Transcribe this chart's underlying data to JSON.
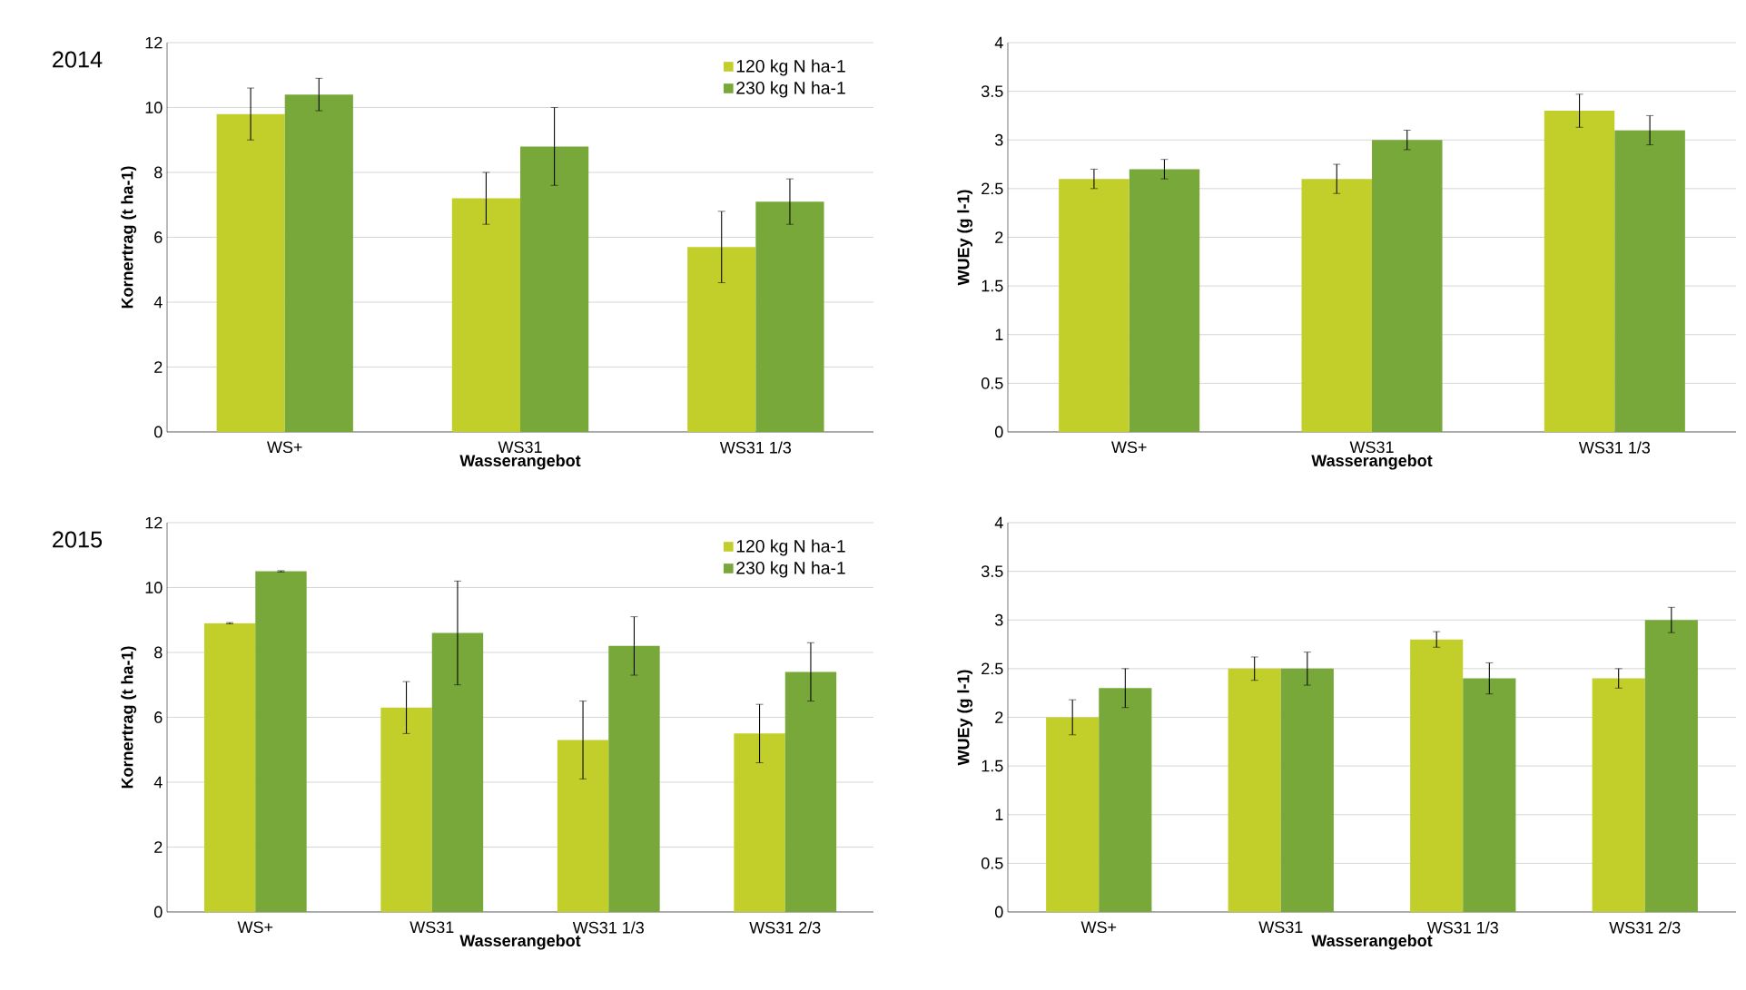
{
  "chart_data": [
    {
      "type": "bar",
      "title": "2014",
      "xlabel": "Wasserangebot",
      "ylabel": "Kornertrag (t ha-1)",
      "categories": [
        "WS+",
        "WS31",
        "WS31 1/3"
      ],
      "ylim": [
        0,
        12
      ],
      "yticks": [
        0,
        2,
        4,
        6,
        8,
        10,
        12
      ],
      "grid": "y",
      "legend": "top right",
      "series": [
        {
          "name": "120 kg N ha-1",
          "color": "#c2cf2b",
          "values": [
            9.8,
            7.2,
            5.7
          ],
          "errors": [
            0.8,
            0.8,
            1.1
          ]
        },
        {
          "name": "230 kg N ha-1",
          "color": "#78a83a",
          "values": [
            10.4,
            8.8,
            7.1
          ],
          "errors": [
            0.5,
            1.2,
            0.7
          ]
        }
      ]
    },
    {
      "type": "bar",
      "xlabel": "Wasserangebot",
      "ylabel": "WUEy (g l-1)",
      "categories": [
        "WS+",
        "WS31",
        "WS31 1/3"
      ],
      "ylim": [
        0,
        4
      ],
      "yticks": [
        0,
        0.5,
        1,
        1.5,
        2,
        2.5,
        3,
        3.5,
        4
      ],
      "grid": "y",
      "series": [
        {
          "color": "#c2cf2b",
          "values": [
            2.6,
            2.6,
            3.3
          ],
          "errors": [
            0.1,
            0.15,
            0.17
          ]
        },
        {
          "color": "#78a83a",
          "values": [
            2.7,
            3.0,
            3.1
          ],
          "errors": [
            0.1,
            0.1,
            0.15
          ]
        }
      ]
    },
    {
      "type": "bar",
      "title": "2015",
      "xlabel": "Wasserangebot",
      "ylabel": "Kornertrag (t ha-1)",
      "categories": [
        "WS+",
        "WS31",
        "WS31 1/3",
        "WS31 2/3"
      ],
      "ylim": [
        0,
        12
      ],
      "yticks": [
        0,
        2,
        4,
        6,
        8,
        10,
        12
      ],
      "grid": "y",
      "legend": "top right",
      "series": [
        {
          "name": "120 kg N ha-1",
          "color": "#c2cf2b",
          "values": [
            8.9,
            6.3,
            5.3,
            5.5
          ],
          "errors": [
            0.02,
            0.8,
            1.2,
            0.9
          ]
        },
        {
          "name": "230 kg N ha-1",
          "color": "#78a83a",
          "values": [
            10.5,
            8.6,
            8.2,
            7.4
          ],
          "errors": [
            0.02,
            1.6,
            0.9,
            0.9
          ]
        }
      ]
    },
    {
      "type": "bar",
      "xlabel": "Wasserangebot",
      "ylabel": "WUEy (g l-1)",
      "categories": [
        "WS+",
        "WS31",
        "WS31 1/3",
        "WS31 2/3"
      ],
      "ylim": [
        0,
        4
      ],
      "yticks": [
        0,
        0.5,
        1,
        1.5,
        2,
        2.5,
        3,
        3.5,
        4
      ],
      "grid": "y",
      "series": [
        {
          "color": "#c2cf2b",
          "values": [
            2.0,
            2.5,
            2.8,
            2.4
          ],
          "errors": [
            0.18,
            0.12,
            0.08,
            0.1
          ]
        },
        {
          "color": "#78a83a",
          "values": [
            2.3,
            2.5,
            2.4,
            3.0
          ],
          "errors": [
            0.2,
            0.17,
            0.16,
            0.13
          ]
        }
      ]
    }
  ]
}
